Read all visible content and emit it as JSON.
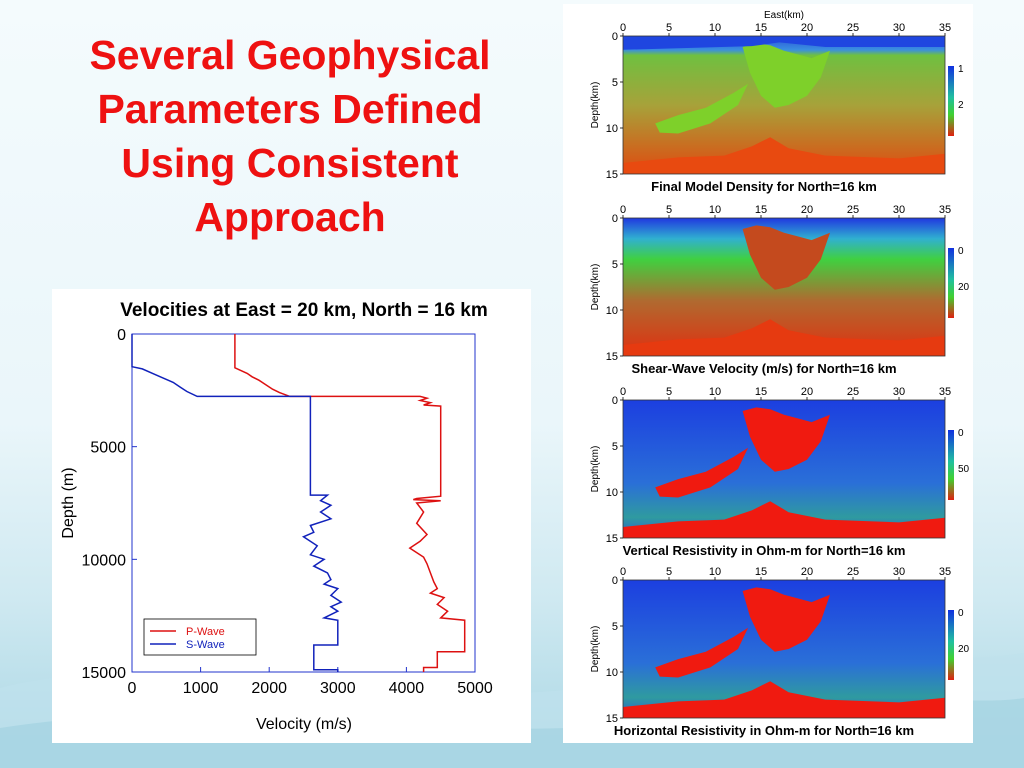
{
  "slide": {
    "title_lines": [
      "Several Geophysical",
      "Parameters Defined",
      "Using Consistent",
      "Approach"
    ],
    "colors": {
      "title": "#ee1111",
      "p_wave": "#dd1111",
      "s_wave": "#1122bb"
    }
  },
  "chart_data": [
    {
      "type": "line",
      "title": "Velocities at East = 20 km, North = 16 km",
      "xlabel": "Velocity (m/s)",
      "ylabel": "Depth (m)",
      "xlim": [
        0,
        5000
      ],
      "ylim": [
        15000,
        0
      ],
      "x_ticks": [
        "0",
        "1000",
        "2000",
        "3000",
        "4000",
        "5000"
      ],
      "y_ticks": [
        "0",
        "5000",
        "10000",
        "15000"
      ],
      "legend": {
        "position": "bottom-left",
        "entries": [
          "P-Wave",
          "S-Wave"
        ]
      },
      "series": [
        {
          "name": "P-Wave",
          "points": [
            [
              1500,
              0
            ],
            [
              1500,
              1500
            ],
            [
              1680,
              1750
            ],
            [
              1750,
              1900
            ],
            [
              1850,
              2050
            ],
            [
              1950,
              2250
            ],
            [
              2050,
              2450
            ],
            [
              2150,
              2600
            ],
            [
              2300,
              2770
            ],
            [
              4200,
              2770
            ],
            [
              4300,
              2850
            ],
            [
              4200,
              2950
            ],
            [
              4350,
              3050
            ],
            [
              4250,
              3150
            ],
            [
              4500,
              3200
            ],
            [
              4500,
              7200
            ],
            [
              4150,
              7300
            ],
            [
              4100,
              7350
            ],
            [
              4500,
              7400
            ],
            [
              4150,
              7500
            ],
            [
              4250,
              7900
            ],
            [
              4150,
              8400
            ],
            [
              4300,
              8900
            ],
            [
              4200,
              9200
            ],
            [
              4050,
              9500
            ],
            [
              4250,
              9900
            ],
            [
              4300,
              10200
            ],
            [
              4350,
              10600
            ],
            [
              4400,
              11000
            ],
            [
              4450,
              11300
            ],
            [
              4350,
              11500
            ],
            [
              4550,
              11700
            ],
            [
              4450,
              12000
            ],
            [
              4600,
              12300
            ],
            [
              4500,
              12600
            ],
            [
              4850,
              12700
            ],
            [
              4850,
              14100
            ],
            [
              4450,
              14100
            ],
            [
              4450,
              14800
            ],
            [
              4250,
              14800
            ],
            [
              4250,
              15000
            ]
          ]
        },
        {
          "name": "S-Wave",
          "points": [
            [
              0,
              0
            ],
            [
              0,
              1450
            ],
            [
              150,
              1550
            ],
            [
              300,
              1750
            ],
            [
              450,
              1950
            ],
            [
              600,
              2150
            ],
            [
              700,
              2350
            ],
            [
              800,
              2550
            ],
            [
              950,
              2770
            ],
            [
              2600,
              2770
            ],
            [
              2600,
              7150
            ],
            [
              2850,
              7150
            ],
            [
              2750,
              7400
            ],
            [
              2900,
              7600
            ],
            [
              2750,
              7900
            ],
            [
              2900,
              8200
            ],
            [
              2600,
              8500
            ],
            [
              2650,
              8800
            ],
            [
              2500,
              9000
            ],
            [
              2700,
              9400
            ],
            [
              2600,
              9800
            ],
            [
              2800,
              10000
            ],
            [
              2650,
              10300
            ],
            [
              2850,
              10600
            ],
            [
              2900,
              10900
            ],
            [
              2800,
              11100
            ],
            [
              3000,
              11300
            ],
            [
              2900,
              11600
            ],
            [
              3050,
              11900
            ],
            [
              2900,
              12100
            ],
            [
              3000,
              12300
            ],
            [
              2800,
              12600
            ],
            [
              3000,
              12700
            ],
            [
              3000,
              13800
            ],
            [
              2650,
              13800
            ],
            [
              2650,
              14900
            ],
            [
              3000,
              14900
            ],
            [
              3000,
              15000
            ]
          ]
        }
      ]
    },
    {
      "type": "heatmap",
      "title": "Final Model Density for North=16 km",
      "xlabel": "East(km)",
      "ylabel": "Depth(km)",
      "xlim": [
        0,
        35
      ],
      "ylim": [
        15,
        0
      ],
      "x_ticks": [
        "0",
        "5",
        "10",
        "15",
        "20",
        "25",
        "30",
        "35"
      ],
      "y_ticks": [
        "0",
        "5",
        "10",
        "15"
      ],
      "colorbar_ticks": [
        "1",
        "2"
      ]
    },
    {
      "type": "heatmap",
      "title": "Shear-Wave Velocity (m/s) for North=16 km",
      "ylabel": "Depth(km)",
      "xlim": [
        0,
        35
      ],
      "ylim": [
        15,
        0
      ],
      "x_ticks": [
        "0",
        "5",
        "10",
        "15",
        "20",
        "25",
        "30",
        "35"
      ],
      "y_ticks": [
        "0",
        "5",
        "10",
        "15"
      ],
      "colorbar_ticks": [
        "0",
        "20"
      ]
    },
    {
      "type": "heatmap",
      "title": "Vertical Resistivity in Ohm-m for North=16 km",
      "ylabel": "Depth(km)",
      "xlim": [
        0,
        35
      ],
      "ylim": [
        15,
        0
      ],
      "x_ticks": [
        "0",
        "5",
        "10",
        "15",
        "20",
        "25",
        "30",
        "35"
      ],
      "y_ticks": [
        "0",
        "5",
        "10",
        "15"
      ],
      "colorbar_ticks": [
        "0",
        "50"
      ]
    },
    {
      "type": "heatmap",
      "title": "Horizontal Resistivity in Ohm-m for North=16 km",
      "ylabel": "Depth(km)",
      "xlim": [
        0,
        35
      ],
      "ylim": [
        15,
        0
      ],
      "x_ticks": [
        "0",
        "5",
        "10",
        "15",
        "20",
        "25",
        "30",
        "35"
      ],
      "y_ticks": [
        "0",
        "5",
        "10",
        "15"
      ],
      "colorbar_ticks": [
        "0",
        "20"
      ]
    }
  ]
}
